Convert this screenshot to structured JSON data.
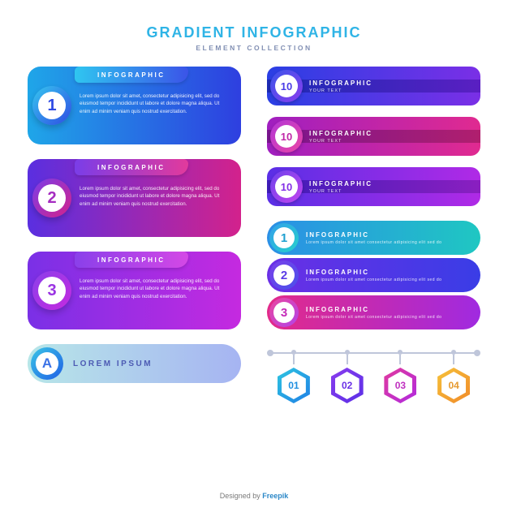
{
  "header": {
    "title": "GRADIENT INFOGRAPHIC",
    "subtitle": "ELEMENT COLLECTION",
    "title_color": "#2fb4e6",
    "subtitle_color": "#818fb3"
  },
  "lorem": "Lorem ipsum dolor sit amet, consectetur adipisicing elit, sed do eiusmod tempor incididunt ut labore et dolore magna aliqua. Ut enim ad minim veniam quis nostrud exercitation.",
  "cards": [
    {
      "num": "1",
      "label": "INFOGRAPHIC",
      "bg_from": "#1fa6e8",
      "bg_to": "#2e3fe0",
      "tab_from": "#2fc6f0",
      "tab_to": "#3b54e8",
      "ring_from": "#36c7ef",
      "ring_to": "#2f4be4",
      "num_color": "#2f4be4"
    },
    {
      "num": "2",
      "label": "INFOGRAPHIC",
      "bg_from": "#5a2fe0",
      "bg_to": "#d3228c",
      "tab_from": "#7a3de8",
      "tab_to": "#e23a9c",
      "ring_from": "#7a3de8",
      "ring_to": "#d3228c",
      "num_color": "#a52cc0"
    },
    {
      "num": "3",
      "label": "INFOGRAPHIC",
      "bg_from": "#7a30e6",
      "bg_to": "#c52ae0",
      "tab_from": "#8a40ea",
      "tab_to": "#d448e6",
      "ring_from": "#8a40ea",
      "ring_to": "#c52ae0",
      "num_color": "#9a34e2"
    }
  ],
  "bars": [
    {
      "num": "10",
      "title": "INFOGRAPHIC",
      "sub": "YOUR TEXT",
      "bg_from": "#2a3fe4",
      "bg_to": "#7a2fe6",
      "stripe_from": "#1c2bb6",
      "stripe_to": "#5a1fc2",
      "ring_from": "#3a55ea",
      "ring_to": "#8a3dee",
      "num_color": "#4a3ce6"
    },
    {
      "num": "10",
      "title": "INFOGRAPHIC",
      "sub": "YOUR TEXT",
      "bg_from": "#a01fc0",
      "bg_to": "#e02a90",
      "stripe_from": "#7a1590",
      "stripe_to": "#b01f6e",
      "ring_from": "#b236d6",
      "ring_to": "#ea45a6",
      "num_color": "#c028a8"
    },
    {
      "num": "10",
      "title": "INFOGRAPHIC",
      "sub": "YOUR TEXT",
      "bg_from": "#5a2fe6",
      "bg_to": "#b02ae6",
      "stripe_from": "#3e1cba",
      "stripe_to": "#8a1fc0",
      "ring_from": "#6d42ec",
      "ring_to": "#c244ee",
      "num_color": "#8430e6"
    }
  ],
  "stack": [
    {
      "num": "1",
      "title": "INFOGRAPHIC",
      "sub": "Lorem ipsum dolor sit amet consectetur adipisicing elit sed do",
      "bg_from": "#2b8fe6",
      "bg_to": "#1fc7c2",
      "ring_from": "#34a0ea",
      "ring_to": "#26d0cc",
      "num_color": "#1fa0d0"
    },
    {
      "num": "2",
      "title": "INFOGRAPHIC",
      "sub": "Lorem ipsum dolor sit amet consectetur adipisicing elit sed do",
      "bg_from": "#6a2fe6",
      "bg_to": "#3a3de6",
      "ring_from": "#7a40ea",
      "ring_to": "#4a50ea",
      "num_color": "#5a3ce6"
    },
    {
      "num": "3",
      "title": "INFOGRAPHIC",
      "sub": "Lorem ipsum dolor sit amet consectetur adipisicing elit sed do",
      "bg_from": "#e22a8a",
      "bg_to": "#a02ae0",
      "ring_from": "#ea45a0",
      "ring_to": "#b244e8",
      "num_color": "#c42ab8"
    }
  ],
  "lozenge": {
    "letter": "A",
    "text": "LOREM IPSUM",
    "bg_from": "#b7e6e8",
    "bg_to": "#a6b4f2",
    "ring_from": "#3ac5e6",
    "ring_to": "#1f5fe6",
    "letter_color": "#3b72e6",
    "text_color": "#4c5ab3"
  },
  "hex_timeline": {
    "line_color": "#bfc6da",
    "items": [
      {
        "num": "01",
        "from": "#2fc6e0",
        "to": "#1f7fe6",
        "num_color": "#1f8fe0"
      },
      {
        "num": "02",
        "from": "#8a3dee",
        "to": "#5a2fe6",
        "num_color": "#6a30e6"
      },
      {
        "num": "03",
        "from": "#e23a9c",
        "to": "#b02ae0",
        "num_color": "#c030c0"
      },
      {
        "num": "04",
        "from": "#f6c23a",
        "to": "#f08a2a",
        "num_color": "#e69a30"
      }
    ]
  },
  "credit": {
    "prefix": "Designed by ",
    "brand": "Freepik"
  }
}
